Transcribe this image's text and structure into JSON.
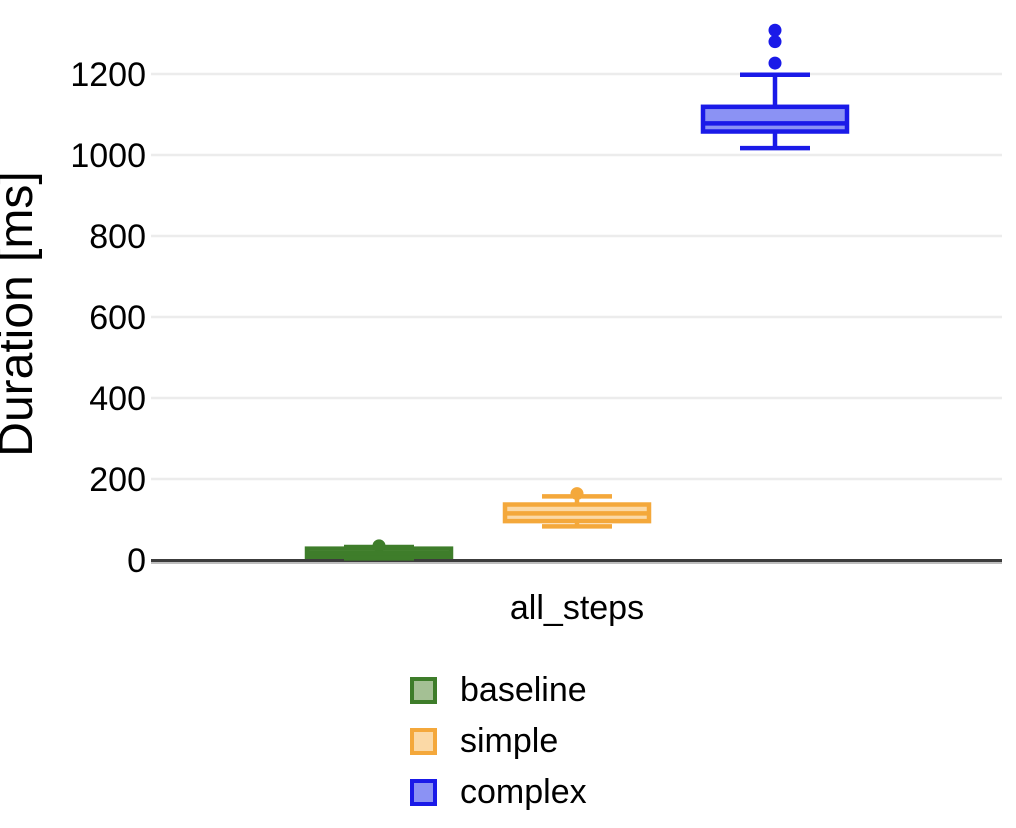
{
  "chart_data": {
    "type": "boxplot",
    "title": "",
    "xlabel": "",
    "ylabel": "Duration [ms]",
    "categories": [
      "all_steps"
    ],
    "yticks": [
      0,
      200,
      400,
      600,
      800,
      1000,
      1200
    ],
    "ylim": [
      0,
      1380
    ],
    "grid": true,
    "legend_position": "bottom",
    "axis_color": "#3C3C3C",
    "gridline_color": "#ECECEC",
    "series": [
      {
        "name": "baseline",
        "stroke": "#3E7D2A",
        "fill": "#A4C094",
        "box": {
          "whisker_low": 4,
          "q1": 8,
          "median": 17,
          "q3": 28,
          "whisker_high": 32
        },
        "outliers": [
          35
        ]
      },
      {
        "name": "simple",
        "stroke": "#F4A83B",
        "fill": "#FBD9A6",
        "box": {
          "whisker_low": 83,
          "q1": 96,
          "median": 115,
          "q3": 137,
          "whisker_high": 157
        },
        "outliers": [
          164
        ]
      },
      {
        "name": "complex",
        "stroke": "#1A1AE8",
        "fill": "#8B92F4",
        "box": {
          "whisker_low": 1017,
          "q1": 1058,
          "median": 1078,
          "q3": 1119,
          "whisker_high": 1198
        },
        "outliers": [
          1227,
          1280,
          1308
        ]
      }
    ]
  }
}
